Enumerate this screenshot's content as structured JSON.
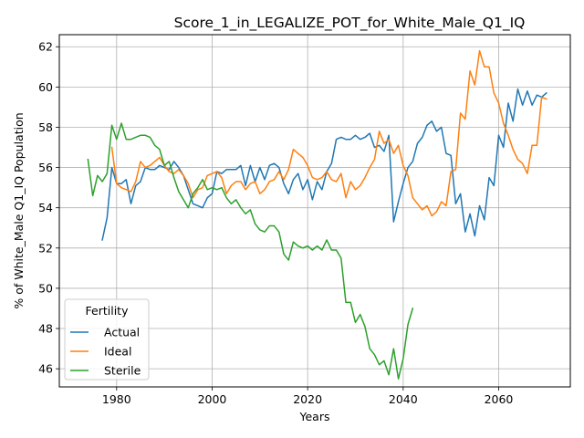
{
  "chart_data": {
    "type": "line",
    "title": "Score_1_in_LEGALIZE_POT_for_White_Male_Q1_IQ",
    "xlabel": "Years",
    "ylabel": "% of White_Male Q1_IQ Population",
    "xlim": [
      1968,
      2075
    ],
    "ylim": [
      45.1,
      62.6
    ],
    "x_ticks": [
      1980,
      2000,
      2020,
      2040,
      2060
    ],
    "y_ticks": [
      46,
      48,
      50,
      52,
      54,
      56,
      58,
      60,
      62
    ],
    "grid": true,
    "legend": {
      "title": "Fertility",
      "position": "lower-left"
    },
    "series": [
      {
        "name": "Actual",
        "color": "#1f77b4",
        "x": [
          1977,
          1978,
          1979,
          1980,
          1981,
          1982,
          1983,
          1984,
          1985,
          1986,
          1987,
          1988,
          1989,
          1990,
          1991,
          1992,
          1993,
          1994,
          1995,
          1996,
          1997,
          1998,
          1999,
          2000,
          2001,
          2002,
          2003,
          2004,
          2005,
          2006,
          2007,
          2008,
          2009,
          2010,
          2011,
          2012,
          2013,
          2014,
          2015,
          2016,
          2017,
          2018,
          2019,
          2020,
          2021,
          2022,
          2023,
          2024,
          2025,
          2026,
          2027,
          2028,
          2029,
          2030,
          2031,
          2032,
          2033,
          2034,
          2035,
          2036,
          2037,
          2038,
          2039,
          2040,
          2041,
          2042,
          2043,
          2044,
          2045,
          2046,
          2047,
          2048,
          2049,
          2050,
          2051,
          2052,
          2053,
          2054,
          2055,
          2056,
          2057,
          2058,
          2059,
          2060,
          2061,
          2062,
          2063,
          2064,
          2065,
          2066,
          2067,
          2068,
          2069,
          2070
        ],
        "y": [
          52.4,
          53.5,
          56.0,
          55.2,
          55.2,
          55.4,
          54.2,
          55.1,
          55.3,
          56.0,
          55.9,
          55.9,
          56.1,
          56.0,
          55.9,
          56.3,
          56.0,
          55.6,
          54.9,
          54.2,
          54.1,
          54.0,
          54.5,
          54.7,
          55.8,
          55.7,
          55.9,
          55.9,
          55.9,
          56.1,
          55.1,
          56.1,
          55.3,
          56.0,
          55.4,
          56.1,
          56.2,
          56.0,
          55.2,
          54.7,
          55.4,
          55.7,
          54.9,
          55.4,
          54.4,
          55.3,
          54.9,
          55.8,
          56.2,
          57.4,
          57.5,
          57.4,
          57.4,
          57.6,
          57.4,
          57.5,
          57.7,
          57.0,
          57.1,
          56.8,
          57.6,
          53.3,
          54.3,
          55.2,
          56.0,
          56.3,
          57.2,
          57.5,
          58.1,
          58.3,
          57.8,
          58.0,
          56.7,
          56.6,
          54.2,
          54.7,
          52.8,
          53.7,
          52.6,
          54.1,
          53.4,
          55.5,
          55.1,
          57.6,
          57.0,
          59.2,
          58.3,
          59.9,
          59.1,
          59.8,
          59.1,
          59.6,
          59.5,
          59.7
        ]
      },
      {
        "name": "Ideal",
        "color": "#ff7f0e",
        "x": [
          1979,
          1980,
          1981,
          1982,
          1983,
          1984,
          1985,
          1986,
          1987,
          1988,
          1989,
          1990,
          1991,
          1992,
          1993,
          1994,
          1995,
          1996,
          1997,
          1998,
          1999,
          2000,
          2001,
          2002,
          2003,
          2004,
          2005,
          2006,
          2007,
          2008,
          2009,
          2010,
          2011,
          2012,
          2013,
          2014,
          2015,
          2016,
          2017,
          2018,
          2019,
          2020,
          2021,
          2022,
          2023,
          2024,
          2025,
          2026,
          2027,
          2028,
          2029,
          2030,
          2031,
          2032,
          2033,
          2034,
          2035,
          2036,
          2037,
          2038,
          2039,
          2040,
          2041,
          2042,
          2043,
          2044,
          2045,
          2046,
          2047,
          2048,
          2049,
          2050,
          2051,
          2052,
          2053,
          2054,
          2055,
          2056,
          2057,
          2058,
          2059,
          2060,
          2061,
          2062,
          2063,
          2064,
          2065,
          2066,
          2067,
          2068,
          2069,
          2070
        ],
        "y": [
          57.0,
          55.2,
          55.0,
          54.9,
          54.8,
          55.3,
          56.3,
          56.0,
          56.1,
          56.3,
          56.5,
          56.1,
          55.8,
          55.7,
          55.9,
          55.6,
          55.2,
          54.5,
          54.9,
          55.0,
          55.6,
          55.7,
          55.8,
          55.5,
          54.7,
          55.1,
          55.3,
          55.3,
          54.9,
          55.2,
          55.3,
          54.7,
          54.9,
          55.3,
          55.4,
          55.8,
          55.4,
          55.9,
          56.9,
          56.7,
          56.5,
          56.1,
          55.5,
          55.4,
          55.5,
          55.8,
          55.4,
          55.3,
          55.7,
          54.5,
          55.3,
          54.9,
          55.1,
          55.5,
          56.0,
          56.4,
          57.8,
          57.2,
          57.4,
          56.7,
          57.1,
          56.1,
          55.6,
          54.5,
          54.2,
          53.9,
          54.1,
          53.6,
          53.8,
          54.3,
          54.1,
          55.8,
          55.9,
          58.7,
          58.4,
          60.8,
          60.1,
          61.8,
          61.0,
          61.0,
          59.7,
          59.2,
          58.2,
          57.6,
          56.9,
          56.4,
          56.2,
          55.7,
          57.1,
          57.1,
          59.5,
          59.4
        ]
      },
      {
        "name": "Sterile",
        "color": "#2ca02c",
        "x": [
          1974,
          1975,
          1976,
          1977,
          1978,
          1979,
          1980,
          1981,
          1982,
          1983,
          1984,
          1985,
          1986,
          1987,
          1988,
          1989,
          1990,
          1991,
          1992,
          1993,
          1994,
          1995,
          1996,
          1997,
          1998,
          1999,
          2000,
          2001,
          2002,
          2003,
          2004,
          2005,
          2006,
          2007,
          2008,
          2009,
          2010,
          2011,
          2012,
          2013,
          2014,
          2015,
          2016,
          2017,
          2018,
          2019,
          2020,
          2021,
          2022,
          2023,
          2024,
          2025,
          2026,
          2027,
          2028,
          2029,
          2030,
          2031,
          2032,
          2033,
          2034,
          2035,
          2036,
          2037,
          2038,
          2039,
          2040,
          2041,
          2042
        ],
        "y": [
          56.4,
          54.6,
          55.6,
          55.3,
          55.7,
          58.1,
          57.4,
          58.2,
          57.4,
          57.4,
          57.5,
          57.6,
          57.6,
          57.5,
          57.1,
          56.9,
          56.1,
          56.3,
          55.5,
          54.8,
          54.4,
          54.0,
          54.7,
          55.0,
          55.4,
          54.9,
          55.0,
          54.9,
          55.0,
          54.5,
          54.2,
          54.4,
          54.0,
          53.7,
          53.9,
          53.2,
          52.9,
          52.8,
          53.1,
          53.1,
          52.8,
          51.7,
          51.4,
          52.3,
          52.1,
          52.0,
          52.1,
          51.9,
          52.1,
          51.9,
          52.4,
          51.9,
          51.9,
          51.5,
          49.3,
          49.3,
          48.3,
          48.7,
          48.1,
          47.0,
          46.7,
          46.2,
          46.4,
          45.7,
          47.0,
          45.5,
          46.5,
          48.2,
          49.0
        ]
      }
    ]
  }
}
